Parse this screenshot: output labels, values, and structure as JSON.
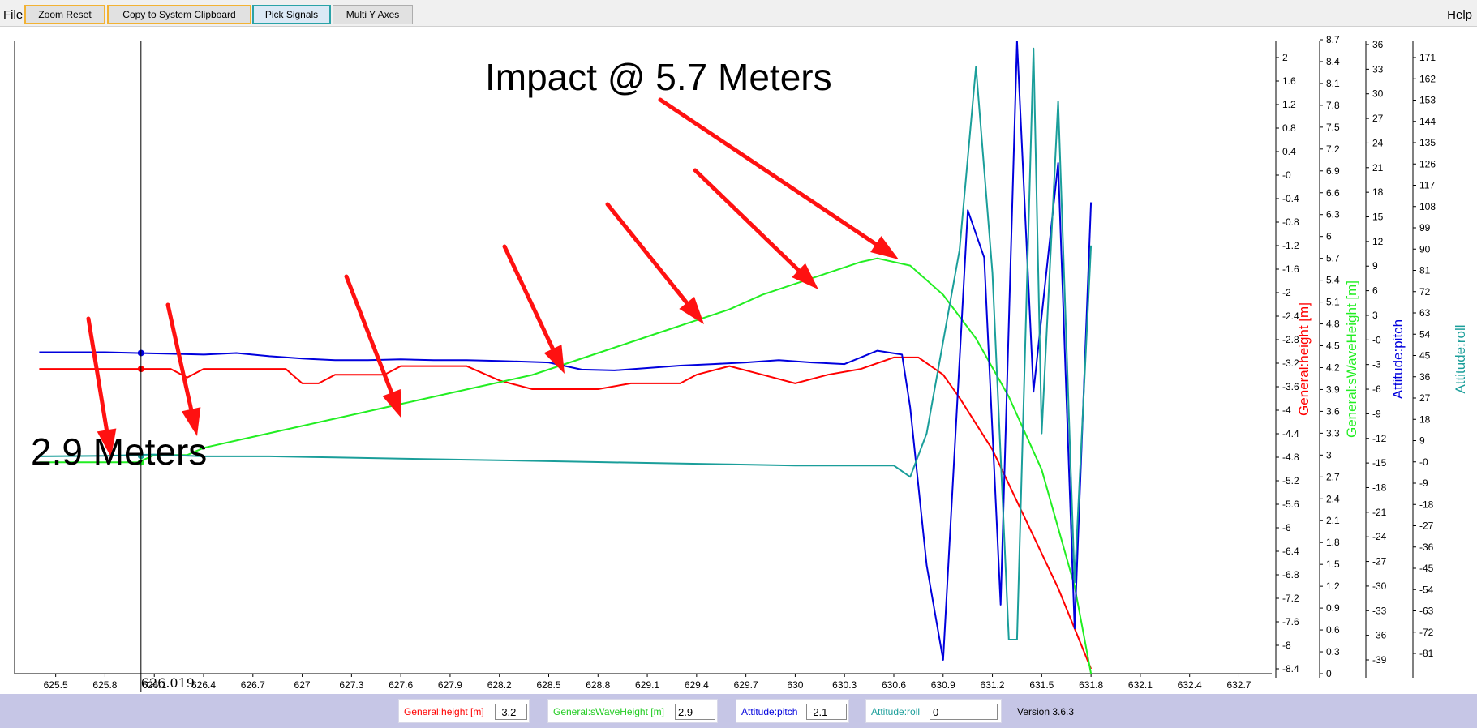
{
  "menu": {
    "file": "File",
    "help": "Help"
  },
  "toolbar": {
    "zoom_reset": "Zoom Reset",
    "copy_clipboard": "Copy to System Clipboard",
    "pick_signals": "Pick Signals",
    "multi_y_axes": "Multi Y Axes"
  },
  "status": {
    "height_label": "General:height [m]",
    "height_value": "-3.2",
    "wave_label": "General:sWaveHeight [m]",
    "wave_value": "2.9",
    "pitch_label": "Attitude:pitch",
    "pitch_value": "-2.1",
    "roll_label": "Attitude:roll",
    "roll_value": "0",
    "version": "Version 3.6.3"
  },
  "colors": {
    "height": "#ff0000",
    "wave": "#22ee22",
    "pitch": "#0000dd",
    "roll": "#1a9e9a",
    "arrow": "#ff1111"
  },
  "chart_data": {
    "type": "line",
    "title": "",
    "annotations": {
      "impact": "Impact @ 5.7 Meters",
      "start": "2.9 Meters",
      "cursor": "626.019"
    },
    "cursor_x": 626.019,
    "x": {
      "range": [
        625.4,
        632.8
      ],
      "ticks": [
        "625.5",
        "625.8",
        "626.1",
        "626.4",
        "626.7",
        "627",
        "627.3",
        "627.6",
        "627.9",
        "628.2",
        "628.5",
        "628.8",
        "629.1",
        "629.4",
        "629.7",
        "630",
        "630.3",
        "630.6",
        "630.9",
        "631.2",
        "631.5",
        "631.8",
        "632.1",
        "632.4",
        "632.7"
      ]
    },
    "y_axes": [
      {
        "id": "height",
        "label": "General:height [m]",
        "range": [
          -8.4,
          2.2
        ],
        "ticks": [
          "2",
          "1.6",
          "1.2",
          "0.8",
          "0.4",
          "-0",
          "-0.4",
          "-0.8",
          "-1.2",
          "-1.6",
          "-2",
          "-2.4",
          "-2.8",
          "-3.2",
          "-3.6",
          "-4",
          "-4.4",
          "-4.8",
          "-5.2",
          "-5.6",
          "-6",
          "-6.4",
          "-6.8",
          "-7.2",
          "-7.6",
          "-8",
          "-8.4"
        ]
      },
      {
        "id": "wave",
        "label": "General:sWaveHeight [m]",
        "range": [
          0,
          8.7
        ],
        "ticks": [
          "8.7",
          "8.4",
          "8.1",
          "7.8",
          "7.5",
          "7.2",
          "6.9",
          "6.6",
          "6.3",
          "6",
          "5.7",
          "5.4",
          "5.1",
          "4.8",
          "4.5",
          "4.2",
          "3.9",
          "3.6",
          "3.3",
          "3",
          "2.7",
          "2.4",
          "2.1",
          "1.8",
          "1.5",
          "1.2",
          "0.9",
          "0.6",
          "0.3",
          "0"
        ]
      },
      {
        "id": "pitch",
        "label": "Attitude:pitch",
        "range": [
          -41,
          37
        ],
        "ticks": [
          "36",
          "33",
          "30",
          "27",
          "24",
          "21",
          "18",
          "15",
          "12",
          "9",
          "6",
          "3",
          "-0",
          "-3",
          "-6",
          "-9",
          "-12",
          "-15",
          "-18",
          "-21",
          "-24",
          "-27",
          "-30",
          "-33",
          "-36",
          "-39"
        ]
      },
      {
        "id": "roll",
        "label": "Attitude:roll",
        "range": [
          -86,
          174
        ],
        "ticks": [
          "171",
          "162",
          "153",
          "144",
          "135",
          "126",
          "117",
          "108",
          "99",
          "90",
          "81",
          "72",
          "63",
          "54",
          "45",
          "36",
          "27",
          "18",
          "9",
          "-0",
          "-9",
          "-18",
          "-27",
          "-36",
          "-45",
          "-54",
          "-63",
          "-72",
          "-81"
        ]
      }
    ],
    "series": [
      {
        "name": "General:height [m]",
        "axis": "height",
        "color": "#ff0000",
        "points": [
          [
            625.4,
            -3.2
          ],
          [
            625.7,
            -3.2
          ],
          [
            626.0,
            -3.2
          ],
          [
            626.2,
            -3.2
          ],
          [
            626.3,
            -3.35
          ],
          [
            626.4,
            -3.2
          ],
          [
            626.7,
            -3.2
          ],
          [
            626.9,
            -3.2
          ],
          [
            627.0,
            -3.45
          ],
          [
            627.1,
            -3.45
          ],
          [
            627.2,
            -3.3
          ],
          [
            627.5,
            -3.3
          ],
          [
            627.6,
            -3.15
          ],
          [
            628.0,
            -3.15
          ],
          [
            628.2,
            -3.4
          ],
          [
            628.4,
            -3.55
          ],
          [
            628.8,
            -3.55
          ],
          [
            629.0,
            -3.45
          ],
          [
            629.3,
            -3.45
          ],
          [
            629.4,
            -3.3
          ],
          [
            629.6,
            -3.15
          ],
          [
            629.8,
            -3.3
          ],
          [
            630.0,
            -3.45
          ],
          [
            630.2,
            -3.3
          ],
          [
            630.4,
            -3.2
          ],
          [
            630.6,
            -3.0
          ],
          [
            630.75,
            -3.0
          ],
          [
            630.9,
            -3.3
          ],
          [
            631.0,
            -3.7
          ],
          [
            631.2,
            -4.6
          ],
          [
            631.4,
            -5.8
          ],
          [
            631.6,
            -7.0
          ],
          [
            631.8,
            -8.4
          ]
        ]
      },
      {
        "name": "General:sWaveHeight [m]",
        "axis": "wave",
        "color": "#22ee22",
        "points": [
          [
            625.4,
            2.9
          ],
          [
            626.0,
            2.9
          ],
          [
            626.1,
            3.0
          ],
          [
            626.3,
            3.0
          ],
          [
            626.4,
            3.1
          ],
          [
            626.6,
            3.2
          ],
          [
            626.8,
            3.3
          ],
          [
            627.0,
            3.4
          ],
          [
            627.2,
            3.5
          ],
          [
            627.4,
            3.6
          ],
          [
            627.6,
            3.7
          ],
          [
            627.8,
            3.8
          ],
          [
            628.0,
            3.9
          ],
          [
            628.2,
            4.0
          ],
          [
            628.4,
            4.1
          ],
          [
            628.6,
            4.25
          ],
          [
            628.8,
            4.4
          ],
          [
            629.0,
            4.55
          ],
          [
            629.2,
            4.7
          ],
          [
            629.4,
            4.85
          ],
          [
            629.6,
            5.0
          ],
          [
            629.8,
            5.2
          ],
          [
            630.0,
            5.35
          ],
          [
            630.2,
            5.5
          ],
          [
            630.4,
            5.65
          ],
          [
            630.5,
            5.7
          ],
          [
            630.7,
            5.6
          ],
          [
            630.9,
            5.2
          ],
          [
            631.1,
            4.6
          ],
          [
            631.3,
            3.8
          ],
          [
            631.5,
            2.8
          ],
          [
            631.7,
            1.2
          ],
          [
            631.8,
            0
          ]
        ]
      },
      {
        "name": "Attitude:pitch",
        "axis": "pitch",
        "color": "#0000dd",
        "points": [
          [
            625.4,
            -2.0
          ],
          [
            625.6,
            -2.0
          ],
          [
            625.8,
            -2.0
          ],
          [
            626.0,
            -2.1
          ],
          [
            626.2,
            -2.2
          ],
          [
            626.4,
            -2.3
          ],
          [
            626.6,
            -2.1
          ],
          [
            626.8,
            -2.5
          ],
          [
            627.0,
            -2.8
          ],
          [
            627.2,
            -3.0
          ],
          [
            627.4,
            -3.0
          ],
          [
            627.6,
            -2.9
          ],
          [
            627.8,
            -3.0
          ],
          [
            628.0,
            -3.0
          ],
          [
            628.2,
            -3.1
          ],
          [
            628.5,
            -3.3
          ],
          [
            628.7,
            -4.2
          ],
          [
            628.9,
            -4.3
          ],
          [
            629.1,
            -4.0
          ],
          [
            629.3,
            -3.7
          ],
          [
            629.5,
            -3.5
          ],
          [
            629.7,
            -3.3
          ],
          [
            629.9,
            -3.0
          ],
          [
            630.1,
            -3.3
          ],
          [
            630.3,
            -3.5
          ],
          [
            630.5,
            -1.8
          ],
          [
            630.65,
            -2.3
          ],
          [
            630.7,
            -9
          ],
          [
            630.8,
            -29
          ],
          [
            630.9,
            -41
          ],
          [
            631.05,
            16
          ],
          [
            631.15,
            10
          ],
          [
            631.25,
            -34
          ],
          [
            631.35,
            38
          ],
          [
            631.45,
            -7
          ],
          [
            631.6,
            22
          ],
          [
            631.7,
            -37
          ],
          [
            631.8,
            17
          ]
        ]
      },
      {
        "name": "Attitude:roll",
        "axis": "roll",
        "color": "#1a9e9a",
        "points": [
          [
            625.4,
            0
          ],
          [
            625.8,
            0.2
          ],
          [
            626.1,
            0.8
          ],
          [
            626.4,
            0
          ],
          [
            626.8,
            0
          ],
          [
            627.2,
            -0.5
          ],
          [
            627.6,
            -1
          ],
          [
            628.0,
            -1.5
          ],
          [
            628.4,
            -2
          ],
          [
            628.8,
            -2.5
          ],
          [
            629.2,
            -3
          ],
          [
            629.6,
            -3.5
          ],
          [
            630.0,
            -4
          ],
          [
            630.4,
            -4
          ],
          [
            630.6,
            -4
          ],
          [
            630.7,
            -9
          ],
          [
            630.8,
            10
          ],
          [
            631.0,
            90
          ],
          [
            631.1,
            170
          ],
          [
            631.2,
            80
          ],
          [
            631.3,
            -80
          ],
          [
            631.35,
            -80
          ],
          [
            631.45,
            178
          ],
          [
            631.5,
            10
          ],
          [
            631.6,
            155
          ],
          [
            631.7,
            -55
          ],
          [
            631.8,
            92
          ]
        ]
      }
    ]
  }
}
